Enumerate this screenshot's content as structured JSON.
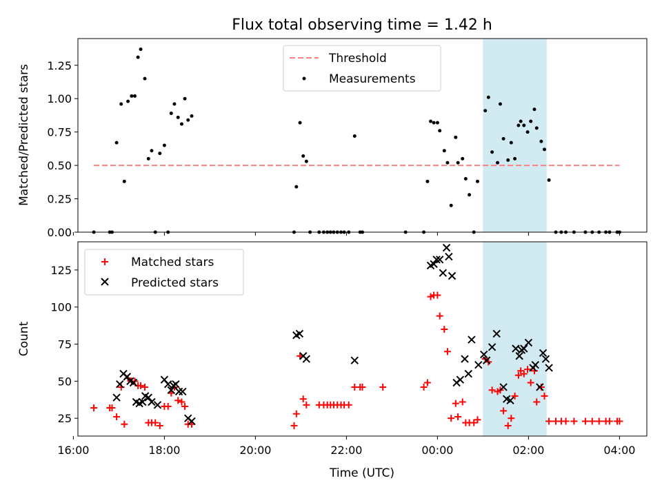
{
  "title": "Flux total observing time = 1.42 h",
  "colors": {
    "threshold": "#ff7f7f",
    "measurement": "#000000",
    "matched": "#ff0000",
    "predicted": "#000000",
    "span": "#add8e6"
  },
  "chart_data": [
    {
      "type": "scatter",
      "ylabel": "Matched/Predicted stars",
      "ylim": [
        0,
        1.45
      ],
      "xlim": [
        16.1,
        28.6
      ],
      "yticks": [
        "0.00",
        "0.25",
        "0.50",
        "0.75",
        "1.00",
        "1.25"
      ],
      "legend": {
        "position": "upper center",
        "threshold": "Threshold",
        "measurements": "Measurements"
      },
      "highlight_span": {
        "x0": 25.0,
        "x1": 26.4
      },
      "threshold": {
        "y": 0.5,
        "x0": 16.45,
        "x1": 28.0
      },
      "series": [
        {
          "name": "Measurements",
          "points": [
            [
              16.45,
              0
            ],
            [
              16.8,
              0
            ],
            [
              16.85,
              0
            ],
            [
              16.95,
              0.67
            ],
            [
              17.05,
              0.96
            ],
            [
              17.12,
              0.38
            ],
            [
              17.2,
              0.98
            ],
            [
              17.28,
              1.02
            ],
            [
              17.35,
              1.02
            ],
            [
              17.42,
              1.31
            ],
            [
              17.48,
              1.37
            ],
            [
              17.57,
              1.15
            ],
            [
              17.65,
              0.55
            ],
            [
              17.72,
              0.61
            ],
            [
              17.8,
              0
            ],
            [
              17.9,
              0.59
            ],
            [
              18.0,
              0.65
            ],
            [
              18.08,
              0
            ],
            [
              18.15,
              0.89
            ],
            [
              18.22,
              0.96
            ],
            [
              18.3,
              0.86
            ],
            [
              18.38,
              0.81
            ],
            [
              18.45,
              1.0
            ],
            [
              18.52,
              0.84
            ],
            [
              18.6,
              0.87
            ],
            [
              20.85,
              0
            ],
            [
              20.9,
              0.34
            ],
            [
              20.98,
              0.82
            ],
            [
              21.05,
              0.57
            ],
            [
              21.12,
              0.53
            ],
            [
              21.2,
              0
            ],
            [
              21.4,
              0
            ],
            [
              21.5,
              0
            ],
            [
              21.58,
              0
            ],
            [
              21.65,
              0
            ],
            [
              21.72,
              0
            ],
            [
              21.8,
              0
            ],
            [
              21.88,
              0
            ],
            [
              21.95,
              0
            ],
            [
              22.05,
              0
            ],
            [
              22.18,
              0.72
            ],
            [
              22.3,
              0
            ],
            [
              22.35,
              0
            ],
            [
              23.3,
              0
            ],
            [
              23.7,
              0
            ],
            [
              23.78,
              0.38
            ],
            [
              23.85,
              0.83
            ],
            [
              23.92,
              0.82
            ],
            [
              24.0,
              0.82
            ],
            [
              24.05,
              0.76
            ],
            [
              24.15,
              0.61
            ],
            [
              24.22,
              0.52
            ],
            [
              24.3,
              0.2
            ],
            [
              24.4,
              0.71
            ],
            [
              24.45,
              0.52
            ],
            [
              24.55,
              0.55
            ],
            [
              24.62,
              0.4
            ],
            [
              24.7,
              0.28
            ],
            [
              24.8,
              0
            ],
            [
              24.88,
              0.38
            ],
            [
              25.05,
              0.91
            ],
            [
              25.12,
              1.01
            ],
            [
              25.2,
              0.6
            ],
            [
              25.32,
              0.52
            ],
            [
              25.38,
              0.96
            ],
            [
              25.45,
              0.7
            ],
            [
              25.55,
              0.54
            ],
            [
              25.62,
              0.67
            ],
            [
              25.7,
              0.55
            ],
            [
              25.78,
              0.8
            ],
            [
              25.83,
              0.83
            ],
            [
              25.9,
              0.8
            ],
            [
              25.98,
              0.75
            ],
            [
              26.05,
              0.83
            ],
            [
              26.13,
              0.92
            ],
            [
              26.18,
              0.78
            ],
            [
              26.28,
              0.68
            ],
            [
              26.35,
              0.62
            ],
            [
              26.45,
              0.39
            ],
            [
              26.6,
              0
            ],
            [
              26.72,
              0
            ],
            [
              26.82,
              0
            ],
            [
              27.0,
              0
            ],
            [
              27.25,
              0
            ],
            [
              27.4,
              0
            ],
            [
              27.55,
              0
            ],
            [
              27.7,
              0
            ],
            [
              27.78,
              0
            ],
            [
              27.95,
              0
            ],
            [
              28.0,
              0
            ]
          ]
        }
      ]
    },
    {
      "type": "scatter",
      "ylabel": "Count",
      "xlabel": "Time (UTC)",
      "ylim": [
        13,
        144
      ],
      "xlim": [
        16.1,
        28.6
      ],
      "yticks": [
        "25",
        "50",
        "75",
        "100",
        "125"
      ],
      "xticks": [
        "16:00",
        "18:00",
        "20:00",
        "22:00",
        "00:00",
        "02:00",
        "04:00"
      ],
      "legend": {
        "position": "upper left",
        "matched": "Matched stars",
        "predicted": "Predicted stars"
      },
      "highlight_span": {
        "x0": 25.0,
        "x1": 26.4
      },
      "series": [
        {
          "name": "Matched stars",
          "points": [
            [
              16.45,
              32
            ],
            [
              16.8,
              32
            ],
            [
              16.85,
              32
            ],
            [
              16.95,
              26
            ],
            [
              17.05,
              46
            ],
            [
              17.12,
              21
            ],
            [
              17.2,
              52
            ],
            [
              17.28,
              50
            ],
            [
              17.35,
              50
            ],
            [
              17.42,
              47
            ],
            [
              17.48,
              47
            ],
            [
              17.57,
              46
            ],
            [
              17.65,
              22
            ],
            [
              17.72,
              22
            ],
            [
              17.8,
              22
            ],
            [
              17.9,
              20
            ],
            [
              18.0,
              33
            ],
            [
              18.08,
              33
            ],
            [
              18.15,
              42
            ],
            [
              18.22,
              46
            ],
            [
              18.3,
              37
            ],
            [
              18.38,
              36
            ],
            [
              18.45,
              33
            ],
            [
              18.52,
              21
            ],
            [
              18.6,
              21
            ],
            [
              20.85,
              20
            ],
            [
              20.9,
              28
            ],
            [
              20.98,
              67
            ],
            [
              21.05,
              38
            ],
            [
              21.12,
              34
            ],
            [
              21.4,
              34
            ],
            [
              21.5,
              34
            ],
            [
              21.58,
              34
            ],
            [
              21.65,
              34
            ],
            [
              21.72,
              34
            ],
            [
              21.8,
              34
            ],
            [
              21.88,
              34
            ],
            [
              21.95,
              34
            ],
            [
              22.05,
              34
            ],
            [
              22.18,
              46
            ],
            [
              22.3,
              46
            ],
            [
              22.35,
              46
            ],
            [
              22.8,
              46
            ],
            [
              23.7,
              46
            ],
            [
              23.78,
              49
            ],
            [
              23.85,
              107
            ],
            [
              23.92,
              108
            ],
            [
              24.0,
              108
            ],
            [
              24.05,
              94
            ],
            [
              24.15,
              85
            ],
            [
              24.22,
              70
            ],
            [
              24.3,
              25
            ],
            [
              24.4,
              35
            ],
            [
              24.45,
              26
            ],
            [
              24.55,
              36
            ],
            [
              24.62,
              22
            ],
            [
              24.7,
              22
            ],
            [
              24.8,
              22
            ],
            [
              24.88,
              24
            ],
            [
              25.05,
              65
            ],
            [
              25.12,
              63
            ],
            [
              25.2,
              44
            ],
            [
              25.32,
              43
            ],
            [
              25.38,
              44
            ],
            [
              25.45,
              30
            ],
            [
              25.55,
              20
            ],
            [
              25.62,
              25
            ],
            [
              25.7,
              40
            ],
            [
              25.78,
              54
            ],
            [
              25.83,
              57
            ],
            [
              25.9,
              55
            ],
            [
              25.98,
              58
            ],
            [
              26.05,
              49
            ],
            [
              26.13,
              57
            ],
            [
              26.18,
              36
            ],
            [
              26.28,
              46
            ],
            [
              26.35,
              40
            ],
            [
              26.45,
              23
            ],
            [
              26.6,
              23
            ],
            [
              26.72,
              23
            ],
            [
              26.82,
              23
            ],
            [
              27.0,
              23
            ],
            [
              27.25,
              23
            ],
            [
              27.4,
              23
            ],
            [
              27.55,
              23
            ],
            [
              27.7,
              23
            ],
            [
              27.78,
              23
            ],
            [
              27.95,
              23
            ],
            [
              28.0,
              23
            ]
          ]
        },
        {
          "name": "Predicted stars",
          "points": [
            [
              16.95,
              39
            ],
            [
              17.02,
              48
            ],
            [
              17.1,
              55
            ],
            [
              17.18,
              53
            ],
            [
              17.25,
              50
            ],
            [
              17.32,
              49
            ],
            [
              17.38,
              36
            ],
            [
              17.45,
              35
            ],
            [
              17.52,
              36
            ],
            [
              17.58,
              40
            ],
            [
              17.65,
              39
            ],
            [
              17.72,
              36
            ],
            [
              17.85,
              34
            ],
            [
              18.0,
              51
            ],
            [
              18.08,
              48
            ],
            [
              18.15,
              44
            ],
            [
              18.2,
              47
            ],
            [
              18.25,
              48
            ],
            [
              18.32,
              43
            ],
            [
              18.4,
              43
            ],
            [
              18.52,
              25
            ],
            [
              18.6,
              23
            ],
            [
              20.9,
              81
            ],
            [
              20.97,
              82
            ],
            [
              21.05,
              67
            ],
            [
              21.12,
              65
            ],
            [
              22.18,
              64
            ],
            [
              23.85,
              128
            ],
            [
              23.92,
              129
            ],
            [
              23.98,
              132
            ],
            [
              24.05,
              132
            ],
            [
              24.12,
              123
            ],
            [
              24.2,
              140
            ],
            [
              24.25,
              134
            ],
            [
              24.32,
              121
            ],
            [
              24.42,
              49
            ],
            [
              24.5,
              51
            ],
            [
              24.6,
              65
            ],
            [
              24.68,
              55
            ],
            [
              24.75,
              78
            ],
            [
              24.9,
              61
            ],
            [
              25.02,
              68
            ],
            [
              25.08,
              64
            ],
            [
              25.2,
              73
            ],
            [
              25.3,
              82
            ],
            [
              25.45,
              46
            ],
            [
              25.52,
              38
            ],
            [
              25.6,
              37
            ],
            [
              25.72,
              72
            ],
            [
              25.8,
              67
            ],
            [
              25.85,
              71
            ],
            [
              25.9,
              72
            ],
            [
              26.0,
              76
            ],
            [
              26.1,
              59
            ],
            [
              26.15,
              61
            ],
            [
              26.25,
              46
            ],
            [
              26.32,
              69
            ],
            [
              26.38,
              65
            ],
            [
              26.45,
              59
            ]
          ]
        }
      ]
    }
  ]
}
